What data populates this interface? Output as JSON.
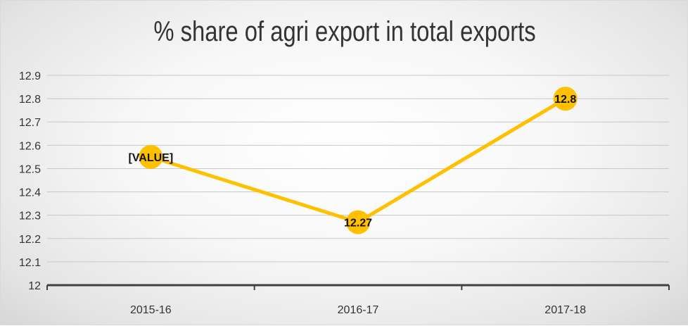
{
  "chart_data": {
    "type": "line",
    "title": "% share of agri export in total exports",
    "categories": [
      "2015-16",
      "2016-17",
      "2017-18"
    ],
    "series": [
      {
        "values": [
          12.55,
          12.27,
          12.8
        ],
        "data_labels": [
          "[VALUE]",
          "12.27",
          "12.8"
        ],
        "color": "#FFC000"
      }
    ],
    "y_ticks": [
      "12",
      "12.1",
      "12.2",
      "12.3",
      "12.4",
      "12.5",
      "12.6",
      "12.7",
      "12.8",
      "12.9"
    ],
    "ylim": [
      12,
      12.9
    ],
    "grid": true,
    "legend": "none"
  }
}
